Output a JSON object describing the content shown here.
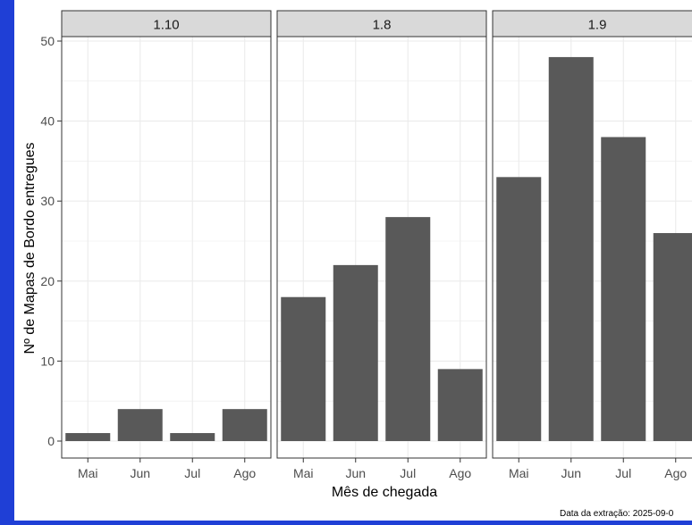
{
  "chart_data": {
    "type": "bar",
    "ylabel": "Nº de Mapas de Bordo entregues",
    "xlabel": "Mês de chegada",
    "caption": "Data da extração: 2025-09-0",
    "ylim": [
      0,
      50
    ],
    "yticks": [
      0,
      10,
      20,
      30,
      40,
      50
    ],
    "categories": [
      "Mai",
      "Jun",
      "Jul",
      "Ago"
    ],
    "grid": true,
    "bar_color": "#595959",
    "strip_color": "#d9d9d9",
    "panels": [
      {
        "label": "1.10",
        "values": [
          1,
          4,
          1,
          4
        ]
      },
      {
        "label": "1.8",
        "values": [
          18,
          22,
          28,
          9
        ]
      },
      {
        "label": "1.9",
        "values": [
          33,
          48,
          38,
          26
        ]
      }
    ]
  }
}
